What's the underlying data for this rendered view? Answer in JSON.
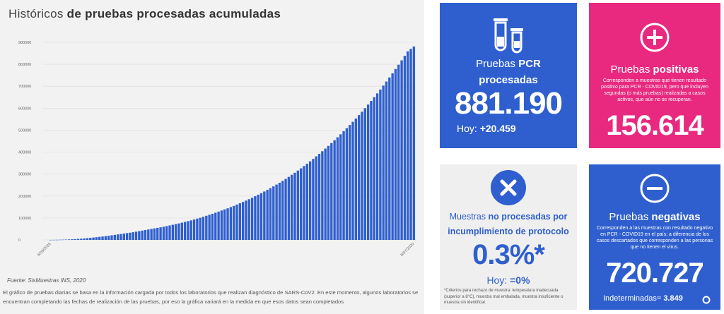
{
  "chart": {
    "title_light": "Históricos",
    "title_bold": "de pruebas procesadas acumuladas",
    "source": "Fuente: SisMuestras INS, 2020",
    "note": "El gráfico de pruebas diarias se basa en la información cargada por todos los laboratorios que realizan diagnóstico de SARS-CoV2. En este momento, algunos laboratorios se encuentran completando las fechas de realización de las pruebas, por eso la gráfica variará en la medida en que esos datos sean completados"
  },
  "chart_data": {
    "type": "bar",
    "title": "Históricos de pruebas procesadas acumuladas",
    "ylim": [
      0,
      900000
    ],
    "y_ticks": [
      "0",
      "100000",
      "200000",
      "300000",
      "400000",
      "500000",
      "600000",
      "700000",
      "800000",
      "900000"
    ],
    "x_start": "6/03/2020",
    "x_end": "6/07/2020",
    "values": [
      200,
      400,
      600,
      900,
      1200,
      1600,
      2200,
      2900,
      3700,
      4600,
      5600,
      6700,
      8000,
      9400,
      11000,
      12500,
      14000,
      15600,
      17300,
      19000,
      21000,
      23000,
      25000,
      27000,
      29000,
      31000,
      33000,
      35000,
      37500,
      40000,
      42500,
      45000,
      47500,
      50000,
      52500,
      55000,
      57500,
      60000,
      63000,
      66000,
      69000,
      72000,
      75000,
      78500,
      82000,
      85500,
      89000,
      93000,
      97000,
      101000,
      105500,
      110000,
      114500,
      119000,
      124000,
      129000,
      134000,
      139000,
      144000,
      149500,
      155000,
      161000,
      167000,
      173000,
      179000,
      185500,
      192000,
      199000,
      206000,
      213000,
      220500,
      228000,
      236000,
      244000,
      252000,
      260500,
      269000,
      278000,
      287000,
      296500,
      306000,
      316000,
      326000,
      336500,
      347000,
      358000,
      369000,
      380500,
      392000,
      404000,
      416000,
      428500,
      441000,
      454000,
      467500,
      481000,
      495000,
      509000,
      523500,
      538000,
      553000,
      568500,
      584000,
      600000,
      616500,
      633000,
      650000,
      667500,
      685000,
      703000,
      721500,
      740000,
      759000,
      778500,
      798000,
      818000,
      838500,
      859000,
      870000,
      881190
    ]
  },
  "cards": {
    "pcr": {
      "title_light": "Pruebas",
      "title_bold": "PCR",
      "subtitle": "procesadas",
      "value": "881.190",
      "today_label": "Hoy:",
      "today_value": "+20.459"
    },
    "positivas": {
      "title_light": "Pruebas",
      "title_bold": "positivas",
      "desc": "Corresponden a muestras que tienen resultado positivo para PCR - COVID19, pero que incluyen segundas (o más pruebas) realizadas a casos activos, que aún no se recuperan.",
      "value": "156.614"
    },
    "no_procesadas": {
      "title_light": "Muestras",
      "title_bold": "no procesadas por incumplimiento de protocolo",
      "value": "0.3%*",
      "today_label": "Hoy:",
      "today_value": "=0%",
      "footnote": "*Criterios para rechazo de muestra: temperatura inadecuada (superior a 8°C), muestra mal embalada, muestra insuficiente o muestra sin identificar."
    },
    "negativas": {
      "title_light": "Pruebas",
      "title_bold": "negativas",
      "desc": "Corresponden a las muestras con resultado negativo en PCR - COVID19 en el país; a diferencia de los casos descartados que corresponden a las personas que no tienen el virus.",
      "value": "720.727",
      "indet_label": "Indeterminadas=",
      "indet_value": "3.849"
    }
  },
  "colors": {
    "blue": "#2f5fce",
    "pink": "#e8297f",
    "grey_panel": "#efefef",
    "bar": "#2f5fce"
  }
}
